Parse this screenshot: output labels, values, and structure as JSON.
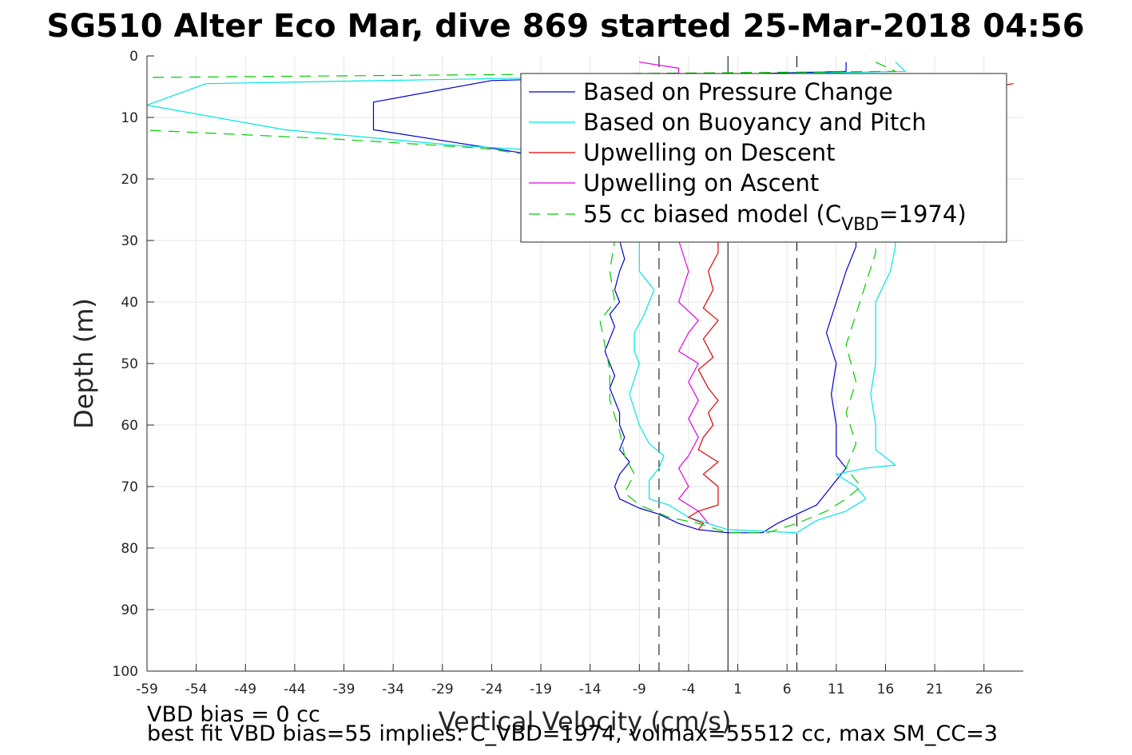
{
  "chart_data": {
    "type": "line",
    "title": "SG510 Alter Eco Mar, dive 869 started 25-Mar-2018 04:56",
    "xlabel": "Vertical Velocity (cm/s)",
    "ylabel": "Depth (m)",
    "xlim": [
      -59,
      30
    ],
    "ylim": [
      0,
      100
    ],
    "y_reversed": true,
    "grid": true,
    "legend_position": "top-right",
    "xticks": [
      -59,
      -54,
      -49,
      -44,
      -39,
      -34,
      -29,
      -24,
      -19,
      -14,
      -9,
      -4,
      1,
      6,
      11,
      16,
      21,
      26
    ],
    "yticks": [
      0,
      10,
      20,
      30,
      40,
      50,
      60,
      70,
      80,
      90,
      100
    ],
    "reference_lines": {
      "solid_x": 0,
      "dashed_x": [
        -7,
        7
      ]
    },
    "legend": [
      {
        "label": "Based on Pressure Change",
        "color": "#0000cc",
        "style": "solid"
      },
      {
        "label": "Based on Buoyancy and Pitch",
        "color": "#00e5e5",
        "style": "solid"
      },
      {
        "label": "Upwelling on Descent",
        "color": "#e00000",
        "style": "solid"
      },
      {
        "label": "Upwelling on Ascent",
        "color": "#e000e0",
        "style": "solid"
      },
      {
        "label": "55 cc biased model (C",
        "subscript": "VBD",
        "suffix": "=1974)",
        "color": "#00cc00",
        "style": "dashed"
      }
    ],
    "series": [
      {
        "name": "Based on Pressure Change",
        "color": "#0000cc",
        "dash": "",
        "points": [
          [
            12,
            1
          ],
          [
            12,
            2.5
          ],
          [
            -24,
            4
          ],
          [
            -36,
            7.5
          ],
          [
            -36,
            12
          ],
          [
            -28,
            14
          ],
          [
            -20,
            16
          ],
          [
            -17,
            17
          ],
          [
            -14,
            18
          ],
          [
            -13,
            20
          ],
          [
            -12,
            24
          ],
          [
            -11,
            30
          ],
          [
            -10.5,
            33
          ],
          [
            -11,
            35
          ],
          [
            -11.5,
            38
          ],
          [
            -11,
            40
          ],
          [
            -12,
            42
          ],
          [
            -11.5,
            44
          ],
          [
            -12,
            46
          ],
          [
            -12.5,
            48
          ],
          [
            -12,
            50
          ],
          [
            -11.5,
            52
          ],
          [
            -12,
            54
          ],
          [
            -11.5,
            56
          ],
          [
            -11,
            58
          ],
          [
            -11,
            60
          ],
          [
            -10.5,
            62
          ],
          [
            -11,
            64
          ],
          [
            -10,
            66
          ],
          [
            -11,
            68
          ],
          [
            -11.5,
            70
          ],
          [
            -11,
            72
          ],
          [
            -9,
            73.5
          ],
          [
            -7,
            74.5
          ],
          [
            -5,
            76
          ],
          [
            -3,
            77
          ],
          [
            0,
            77.5
          ],
          [
            3.5,
            77.5
          ],
          [
            5,
            76
          ],
          [
            7,
            74.5
          ],
          [
            9,
            73
          ],
          [
            10,
            71
          ],
          [
            11,
            69
          ],
          [
            12,
            67
          ],
          [
            11,
            65
          ],
          [
            11,
            60
          ],
          [
            10.5,
            55
          ],
          [
            11,
            50
          ],
          [
            10,
            45
          ],
          [
            11,
            40
          ],
          [
            12,
            35
          ],
          [
            13,
            31
          ],
          [
            13,
            26
          ],
          [
            12,
            20
          ],
          [
            13,
            15
          ],
          [
            13,
            10
          ],
          [
            13,
            5
          ],
          [
            12,
            3
          ]
        ]
      },
      {
        "name": "Based on Buoyancy and Pitch",
        "color": "#00e5e5",
        "dash": "",
        "points": [
          [
            17,
            1
          ],
          [
            18,
            2.5
          ],
          [
            -53,
            4.5
          ],
          [
            -59,
            8
          ],
          [
            -45,
            12
          ],
          [
            -28,
            14.5
          ],
          [
            -18,
            15.5
          ],
          [
            -15,
            17
          ],
          [
            -12,
            20
          ],
          [
            -10,
            25
          ],
          [
            -9,
            30
          ],
          [
            -9,
            35
          ],
          [
            -7.5,
            38
          ],
          [
            -8.5,
            42
          ],
          [
            -9.5,
            45
          ],
          [
            -9.5,
            48
          ],
          [
            -9,
            50
          ],
          [
            -10,
            55
          ],
          [
            -9,
            60
          ],
          [
            -8,
            63
          ],
          [
            -6.5,
            65
          ],
          [
            -7,
            67
          ],
          [
            -8,
            69
          ],
          [
            -8,
            72
          ],
          [
            -6,
            73
          ],
          [
            -4,
            75
          ],
          [
            -2,
            76
          ],
          [
            0,
            77
          ],
          [
            7,
            77.5
          ],
          [
            9,
            75.5
          ],
          [
            12,
            74
          ],
          [
            14,
            72
          ],
          [
            13,
            70
          ],
          [
            11,
            68
          ],
          [
            14,
            67
          ],
          [
            17,
            66.5
          ],
          [
            15,
            64
          ],
          [
            15,
            60
          ],
          [
            14.5,
            55
          ],
          [
            15,
            50
          ],
          [
            15,
            45
          ],
          [
            15,
            40
          ],
          [
            16.5,
            35
          ],
          [
            17,
            31
          ],
          [
            17,
            26
          ],
          [
            17,
            20
          ],
          [
            17,
            15
          ],
          [
            17,
            10
          ],
          [
            18,
            5
          ],
          [
            17,
            3
          ]
        ]
      },
      {
        "name": "Upwelling on Descent",
        "color": "#e00000",
        "dash": "",
        "points": [
          [
            29,
            4.5
          ],
          [
            27,
            5
          ],
          [
            -1,
            29
          ],
          [
            -1,
            32
          ],
          [
            -2,
            35
          ],
          [
            -1.5,
            38
          ],
          [
            -2.5,
            41
          ],
          [
            -1,
            43
          ],
          [
            -2.5,
            46
          ],
          [
            -1.5,
            49
          ],
          [
            -3,
            51
          ],
          [
            -2,
            54
          ],
          [
            -1,
            56
          ],
          [
            -2,
            58
          ],
          [
            -1.5,
            60
          ],
          [
            -2.5,
            62
          ],
          [
            -3,
            64
          ],
          [
            -1,
            66
          ],
          [
            -2.5,
            68
          ],
          [
            -1,
            70
          ],
          [
            -1,
            73
          ],
          [
            -3,
            74
          ],
          [
            -4,
            75
          ],
          [
            -2.5,
            76
          ],
          [
            -3,
            77
          ]
        ]
      },
      {
        "name": "Upwelling on Ascent",
        "color": "#e000e0",
        "dash": "",
        "points": [
          [
            -9,
            1
          ],
          [
            -5,
            2
          ],
          [
            -5,
            30
          ],
          [
            -4,
            35
          ],
          [
            -5,
            40
          ],
          [
            -3,
            43
          ],
          [
            -4,
            45
          ],
          [
            -5,
            48
          ],
          [
            -3,
            50
          ],
          [
            -4,
            53
          ],
          [
            -3,
            56
          ],
          [
            -4,
            59
          ],
          [
            -3,
            62
          ],
          [
            -4,
            65
          ],
          [
            -5,
            67
          ],
          [
            -4,
            70
          ],
          [
            -5,
            72
          ],
          [
            -3,
            74
          ],
          [
            -2,
            76
          ]
        ]
      },
      {
        "name": "55 cc biased model (C_VBD=1974)",
        "color": "#00cc00",
        "dash": "14,9",
        "points": [
          [
            15,
            1
          ],
          [
            17,
            2.5
          ],
          [
            -60,
            3.5
          ],
          [
            -60,
            12
          ],
          [
            -40,
            13.5
          ],
          [
            -25,
            15
          ],
          [
            -16,
            17
          ],
          [
            -13,
            20
          ],
          [
            -12,
            25
          ],
          [
            -11.5,
            30
          ],
          [
            -12,
            35
          ],
          [
            -11.5,
            40
          ],
          [
            -13,
            43
          ],
          [
            -12.5,
            47
          ],
          [
            -12,
            51
          ],
          [
            -12,
            56
          ],
          [
            -11,
            61
          ],
          [
            -10.5,
            65
          ],
          [
            -9.5,
            68
          ],
          [
            -10.5,
            71
          ],
          [
            -9,
            73
          ],
          [
            -6,
            75
          ],
          [
            -3,
            76
          ],
          [
            0,
            77.5
          ],
          [
            4,
            77.5
          ],
          [
            7,
            76
          ],
          [
            10,
            74
          ],
          [
            12,
            72
          ],
          [
            13.5,
            70
          ],
          [
            12,
            67
          ],
          [
            13,
            63
          ],
          [
            12,
            58
          ],
          [
            13,
            53
          ],
          [
            12,
            47
          ],
          [
            13,
            42
          ],
          [
            14,
            37
          ],
          [
            15,
            32
          ],
          [
            15,
            27
          ],
          [
            15,
            20
          ],
          [
            15,
            10
          ],
          [
            16,
            3
          ]
        ]
      }
    ]
  },
  "footer": {
    "line1": "VBD bias = 0 cc",
    "line2": "best fit VBD bias=55 implies: C_VBD=1974, volmax=55512 cc, max SM_CC=3"
  }
}
